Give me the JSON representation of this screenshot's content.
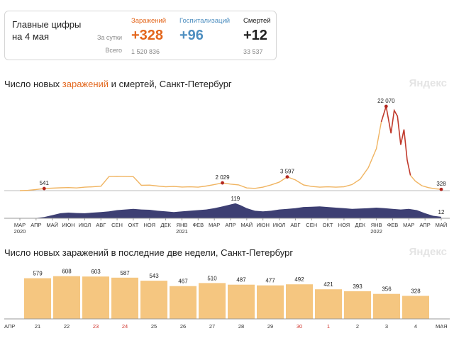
{
  "summary": {
    "title": "Главные цифры на 4 мая",
    "row_labels": {
      "daily": "За сутки",
      "total": "Всего"
    },
    "stats": [
      {
        "key": "cases",
        "label": "Заражений",
        "daily": "+328",
        "total": "1 520 836",
        "color": "#e3661c"
      },
      {
        "key": "hosp",
        "label": "Госпитализаций",
        "daily": "+96",
        "total": "",
        "color": "#4f8fc0"
      },
      {
        "key": "deaths",
        "label": "Смертей",
        "daily": "+12",
        "total": "33 537",
        "color": "#222222"
      }
    ]
  },
  "brand": "Яндекс",
  "chart1": {
    "title_parts": {
      "prefix": "Число новых ",
      "cases": "заражений",
      "middle": " и ",
      "deaths": "смертей",
      "suffix": ", Санкт-Петербург"
    }
  },
  "chart2": {
    "title": "Число новых заражений в последние две недели, Санкт-Петербург"
  },
  "chart_data": [
    {
      "type": "line",
      "title": "Число новых заражений и смертей, Санкт-Петербург",
      "x_ticks": [
        "МАР",
        "АПР",
        "МАЙ",
        "ИЮН",
        "ИЮЛ",
        "АВГ",
        "СЕН",
        "ОКТ",
        "НОЯ",
        "ДЕК",
        "ЯНВ",
        "ФЕВ",
        "МАР",
        "АПР",
        "МАЙ",
        "ИЮН",
        "ИЮЛ",
        "АВГ",
        "СЕН",
        "ОКТ",
        "НОЯ",
        "ДЕК",
        "ЯНВ",
        "ФЕВ",
        "МАР",
        "АПР",
        "МАЙ"
      ],
      "x_tick_years": {
        "0": "2020",
        "10": "2021",
        "22": "2022"
      },
      "series": [
        {
          "color": "#f0b461",
          "peak_color": "#c0392b",
          "x": [
            0,
            0.5,
            1,
            1.5,
            2,
            2.5,
            3,
            3.5,
            4,
            4.5,
            5,
            5.5,
            6,
            6.5,
            7,
            7.5,
            8,
            8.5,
            9,
            9.5,
            10,
            10.5,
            11,
            11.5,
            12,
            12.5,
            13,
            13.5,
            14,
            14.5,
            15,
            15.5,
            16,
            16.5,
            17,
            17.5,
            18,
            18.5,
            19,
            19.5,
            20,
            20.5,
            21,
            21.5,
            22,
            22.3,
            22.6,
            22.9,
            23.1,
            23.3,
            23.5,
            23.7,
            23.9,
            24.1,
            24.4,
            24.8,
            25.2,
            25.6,
            26.0
          ],
          "values": [
            5,
            80,
            300,
            541,
            650,
            750,
            800,
            700,
            900,
            1000,
            1150,
            3700,
            3750,
            3700,
            3650,
            1400,
            1450,
            1200,
            1000,
            1100,
            950,
            1000,
            900,
            1200,
            1600,
            2029,
            1700,
            1500,
            700,
            600,
            900,
            1500,
            2200,
            3597,
            2800,
            1500,
            1100,
            900,
            1000,
            900,
            1000,
            1600,
            3000,
            6000,
            11000,
            18000,
            22070,
            15000,
            21000,
            19500,
            12000,
            16000,
            8000,
            4000,
            2500,
            1300,
            800,
            500,
            328
          ],
          "labels": [
            {
              "x": 1.5,
              "value": 541,
              "text": "541"
            },
            {
              "x": 12.5,
              "value": 2029,
              "text": "2 029"
            },
            {
              "x": 16.5,
              "value": 3597,
              "text": "3 597"
            },
            {
              "x": 22.6,
              "value": 22070,
              "text": "22 070"
            },
            {
              "x": 26.0,
              "value": 328,
              "text": "328"
            }
          ],
          "ylim": [
            0,
            23000
          ]
        },
        {
          "color": "#3d3f73",
          "x": [
            0,
            1,
            1.5,
            2,
            2.5,
            3,
            3.5,
            4,
            4.5,
            5,
            5.5,
            6,
            6.5,
            7,
            7.5,
            8,
            8.5,
            9,
            9.5,
            10,
            10.5,
            11,
            11.5,
            12,
            12.5,
            13,
            13.3,
            13.6,
            14,
            14.5,
            15,
            15.5,
            16,
            16.5,
            17,
            17.5,
            18,
            18.5,
            19,
            19.5,
            20,
            20.5,
            21,
            21.5,
            22,
            22.5,
            23,
            23.5,
            24,
            24.5,
            25,
            25.5,
            26.0
          ],
          "values": [
            0,
            2,
            10,
            25,
            40,
            45,
            42,
            40,
            45,
            50,
            55,
            65,
            70,
            75,
            70,
            68,
            60,
            55,
            50,
            55,
            60,
            65,
            70,
            80,
            95,
            110,
            119,
            105,
            80,
            60,
            55,
            60,
            70,
            75,
            80,
            90,
            92,
            95,
            90,
            85,
            80,
            75,
            78,
            80,
            85,
            80,
            75,
            70,
            75,
            65,
            40,
            20,
            12
          ],
          "labels": [
            {
              "x": 13.3,
              "value": 119,
              "text": "119"
            },
            {
              "x": 26.0,
              "value": 12,
              "text": "12"
            }
          ],
          "ylim": [
            0,
            130
          ]
        }
      ]
    },
    {
      "type": "bar",
      "title": "Число новых заражений в последние две недели, Санкт-Петербург",
      "categories": [
        "21",
        "22",
        "23",
        "24",
        "25",
        "26",
        "27",
        "28",
        "29",
        "30",
        "1",
        "2",
        "3",
        "4"
      ],
      "highlight_categories": [
        "23",
        "24",
        "30",
        "1"
      ],
      "month_labels": {
        "left": "АПР",
        "right": "МАЯ"
      },
      "values": [
        579,
        608,
        603,
        587,
        543,
        467,
        510,
        487,
        477,
        492,
        421,
        393,
        356,
        328
      ],
      "color": "#f5c680",
      "ylim": [
        0,
        650
      ]
    }
  ]
}
